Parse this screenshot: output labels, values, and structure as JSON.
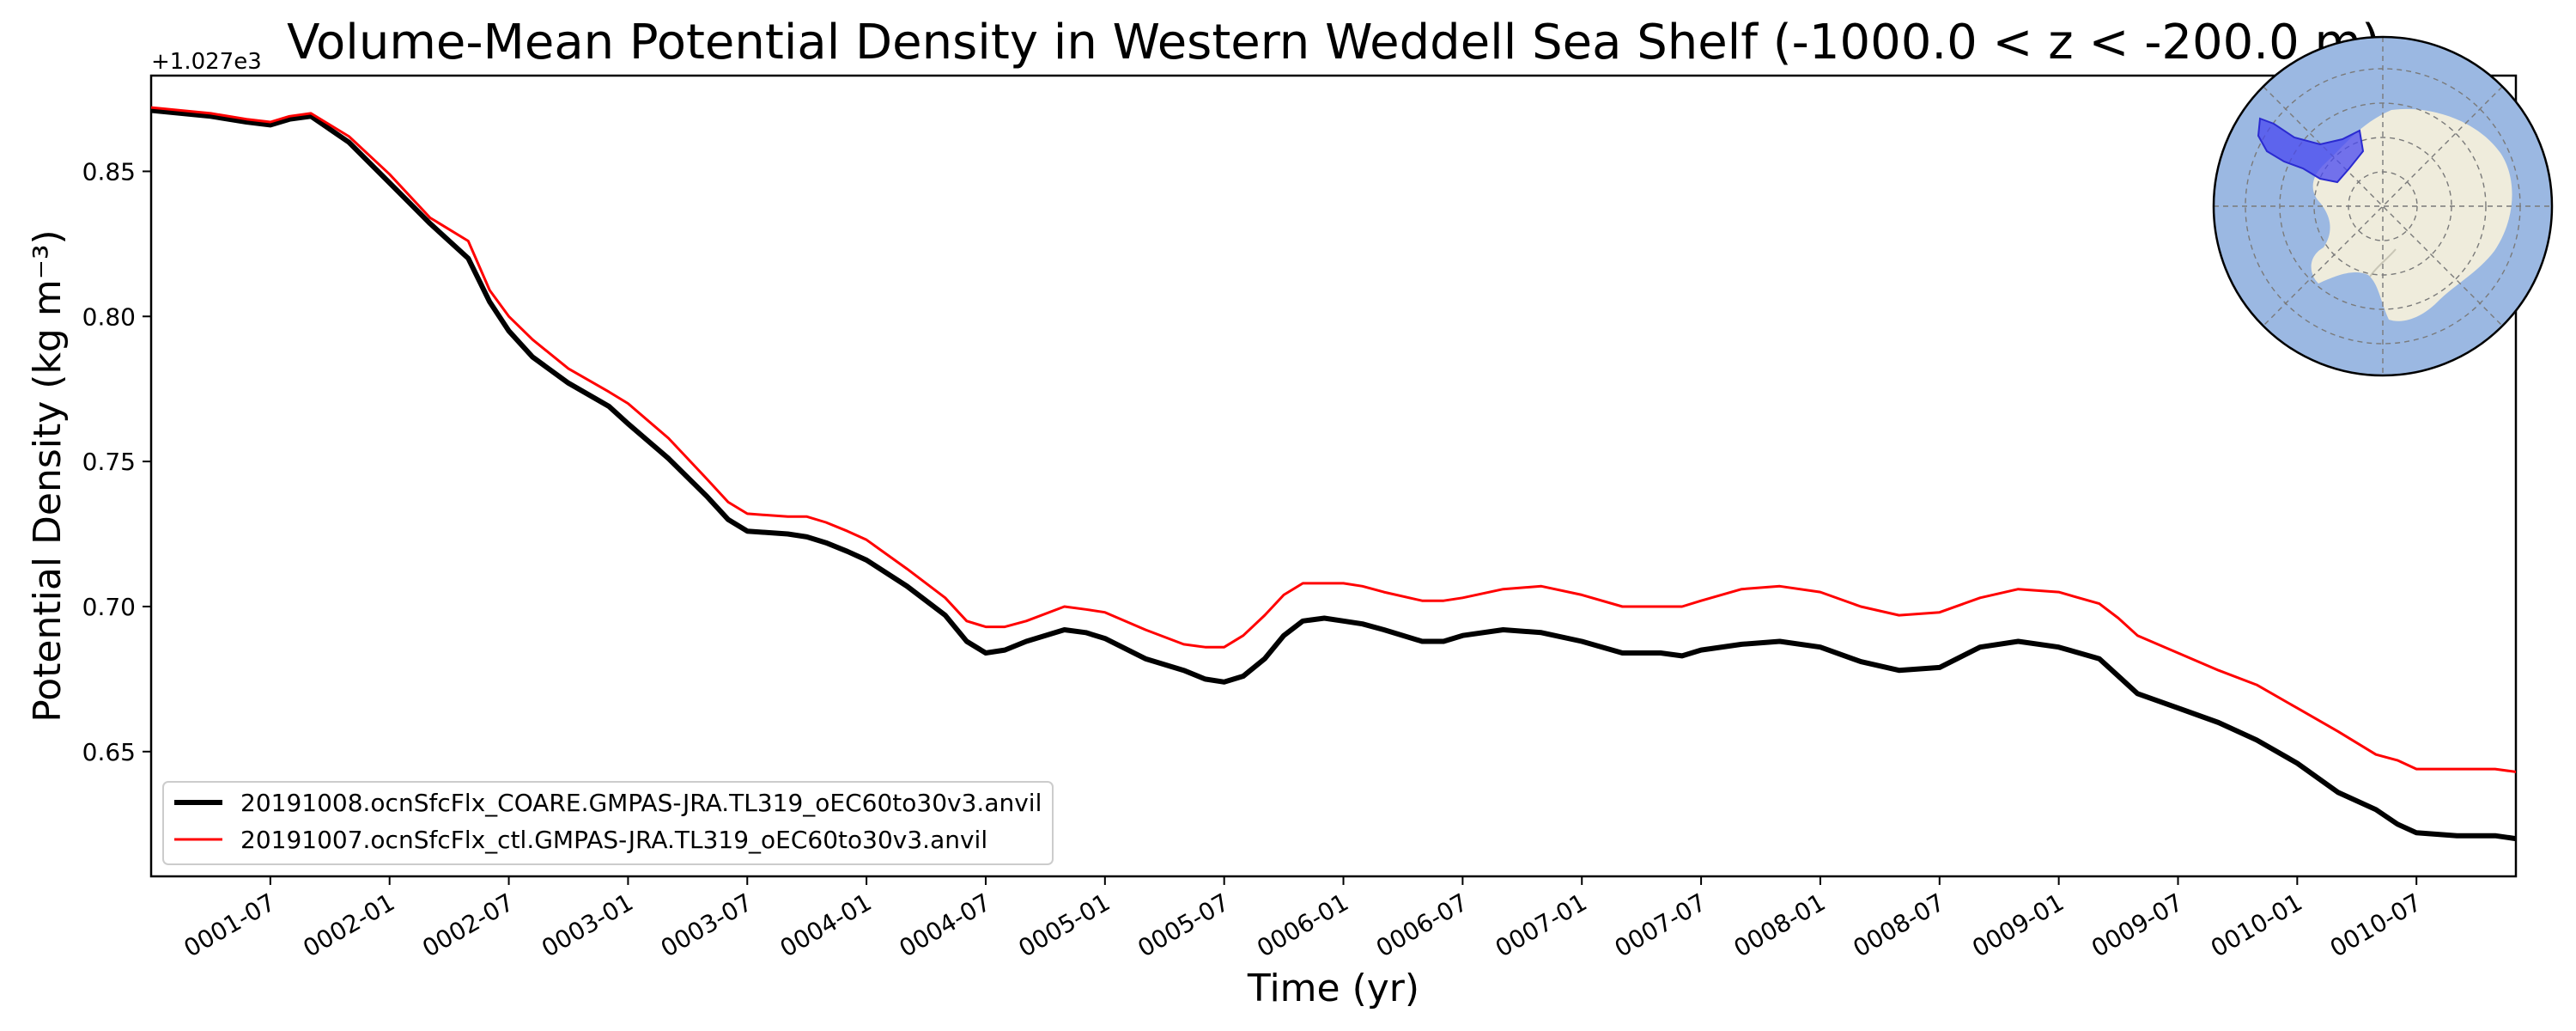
{
  "chart_data": {
    "type": "line",
    "title": "Volume-Mean Potential Density in Western Weddell Sea Shelf (-1000.0 < z < -200.0 m)",
    "xlabel": "Time (yr)",
    "ylabel": "Potential Density (kg m⁻³)",
    "y_offset_label": "+1.027e3",
    "xlim": [
      0.0,
      9.917
    ],
    "ylim": [
      0.607,
      0.883
    ],
    "x_ticks": [
      {
        "label": "0001-07",
        "value": 0.5
      },
      {
        "label": "0002-01",
        "value": 1.0
      },
      {
        "label": "0002-07",
        "value": 1.5
      },
      {
        "label": "0003-01",
        "value": 2.0
      },
      {
        "label": "0003-07",
        "value": 2.5
      },
      {
        "label": "0004-01",
        "value": 3.0
      },
      {
        "label": "0004-07",
        "value": 3.5
      },
      {
        "label": "0005-01",
        "value": 4.0
      },
      {
        "label": "0005-07",
        "value": 4.5
      },
      {
        "label": "0006-01",
        "value": 5.0
      },
      {
        "label": "0006-07",
        "value": 5.5
      },
      {
        "label": "0007-01",
        "value": 6.0
      },
      {
        "label": "0007-07",
        "value": 6.5
      },
      {
        "label": "0008-01",
        "value": 7.0
      },
      {
        "label": "0008-07",
        "value": 7.5
      },
      {
        "label": "0009-01",
        "value": 8.0
      },
      {
        "label": "0009-07",
        "value": 8.5
      },
      {
        "label": "0010-01",
        "value": 9.0
      },
      {
        "label": "0010-07",
        "value": 9.5
      }
    ],
    "y_ticks": [
      {
        "label": "0.65",
        "value": 0.65
      },
      {
        "label": "0.70",
        "value": 0.7
      },
      {
        "label": "0.75",
        "value": 0.75
      },
      {
        "label": "0.80",
        "value": 0.8
      },
      {
        "label": "0.85",
        "value": 0.85
      }
    ],
    "x": [
      0.0,
      0.25,
      0.4,
      0.5,
      0.58,
      0.67,
      0.83,
      1.0,
      1.17,
      1.33,
      1.42,
      1.5,
      1.6,
      1.75,
      1.92,
      2.0,
      2.17,
      2.33,
      2.42,
      2.5,
      2.67,
      2.75,
      2.83,
      2.92,
      3.0,
      3.17,
      3.33,
      3.42,
      3.5,
      3.58,
      3.67,
      3.83,
      3.92,
      4.0,
      4.17,
      4.33,
      4.42,
      4.5,
      4.58,
      4.67,
      4.75,
      4.83,
      4.92,
      5.0,
      5.08,
      5.17,
      5.33,
      5.42,
      5.5,
      5.67,
      5.83,
      6.0,
      6.17,
      6.33,
      6.42,
      6.5,
      6.67,
      6.83,
      7.0,
      7.17,
      7.33,
      7.5,
      7.67,
      7.83,
      8.0,
      8.17,
      8.25,
      8.33,
      8.5,
      8.67,
      8.83,
      9.0,
      9.17,
      9.33,
      9.42,
      9.5,
      9.67,
      9.83,
      9.917
    ],
    "series": [
      {
        "name": "20191008.ocnSfcFlx_COARE.GMPAS-JRA.TL319_oEC60to30v3.anvil",
        "color": "#000000",
        "values": [
          0.871,
          0.869,
          0.867,
          0.866,
          0.868,
          0.869,
          0.86,
          0.846,
          0.832,
          0.82,
          0.805,
          0.795,
          0.786,
          0.777,
          0.769,
          0.763,
          0.751,
          0.738,
          0.73,
          0.726,
          0.725,
          0.724,
          0.722,
          0.719,
          0.716,
          0.707,
          0.697,
          0.688,
          0.684,
          0.685,
          0.688,
          0.692,
          0.691,
          0.689,
          0.682,
          0.678,
          0.675,
          0.674,
          0.676,
          0.682,
          0.69,
          0.695,
          0.696,
          0.695,
          0.694,
          0.692,
          0.688,
          0.688,
          0.69,
          0.692,
          0.691,
          0.688,
          0.684,
          0.684,
          0.683,
          0.685,
          0.687,
          0.688,
          0.686,
          0.681,
          0.678,
          0.679,
          0.686,
          0.688,
          0.686,
          0.682,
          0.676,
          0.67,
          0.665,
          0.66,
          0.654,
          0.646,
          0.636,
          0.63,
          0.625,
          0.622,
          0.621,
          0.621,
          0.62
        ]
      },
      {
        "name": "20191007.ocnSfcFlx_ctl.GMPAS-JRA.TL319_oEC60to30v3.anvil",
        "color": "#ff0000",
        "values": [
          0.872,
          0.87,
          0.868,
          0.867,
          0.869,
          0.87,
          0.862,
          0.849,
          0.834,
          0.826,
          0.809,
          0.8,
          0.792,
          0.782,
          0.774,
          0.77,
          0.758,
          0.744,
          0.736,
          0.732,
          0.731,
          0.731,
          0.729,
          0.726,
          0.723,
          0.713,
          0.703,
          0.695,
          0.693,
          0.693,
          0.695,
          0.7,
          0.699,
          0.698,
          0.692,
          0.687,
          0.686,
          0.686,
          0.69,
          0.697,
          0.704,
          0.708,
          0.708,
          0.708,
          0.707,
          0.705,
          0.702,
          0.702,
          0.703,
          0.706,
          0.707,
          0.704,
          0.7,
          0.7,
          0.7,
          0.702,
          0.706,
          0.707,
          0.705,
          0.7,
          0.697,
          0.698,
          0.703,
          0.706,
          0.705,
          0.701,
          0.696,
          0.69,
          0.684,
          0.678,
          0.673,
          0.665,
          0.657,
          0.649,
          0.647,
          0.644,
          0.644,
          0.644,
          0.643
        ]
      }
    ],
    "legend_position": "lower-left",
    "grid": false,
    "inset_map": {
      "type": "polar-stereographic map of Antarctica",
      "ocean_color": "#9bb8e2",
      "land_color": "#efecdc",
      "region_color": "#4848f0"
    }
  }
}
